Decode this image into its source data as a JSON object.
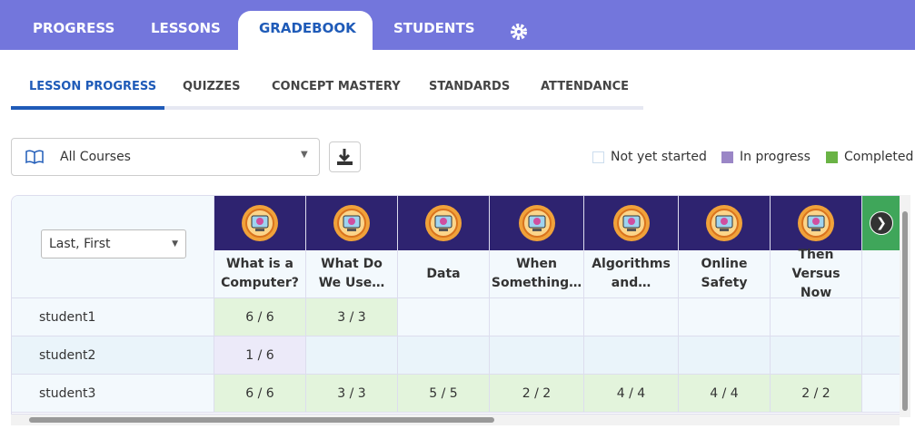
{
  "nav": {
    "tabs": [
      "PROGRESS",
      "LESSONS",
      "GRADEBOOK",
      "STUDENTS"
    ]
  },
  "subnav": {
    "tabs": [
      "LESSON PROGRESS",
      "QUIZZES",
      "CONCEPT MASTERY",
      "STANDARDS",
      "ATTENDANCE"
    ]
  },
  "filter": {
    "course": "All Courses",
    "sort": "Last, First"
  },
  "legend": {
    "items": [
      "Not yet started",
      "In progress",
      "Completed"
    ]
  },
  "table": {
    "lessons": [
      "What is a Computer?",
      "What Do We Use…",
      "Data",
      "When Something…",
      "Algorithms and…",
      "Online Safety",
      "Then Versus Now"
    ],
    "rows": [
      {
        "name": "student1",
        "cells": [
          "6 / 6",
          "3 / 3",
          null,
          null,
          null,
          null,
          null
        ]
      },
      {
        "name": "student2",
        "cells": [
          "1 / 6",
          null,
          null,
          null,
          null,
          null,
          null
        ]
      },
      {
        "name": "student3",
        "cells": [
          "6 / 6",
          "3 / 3",
          "5 / 5",
          "2 / 2",
          "4 / 4",
          "4 / 4",
          "2 / 2"
        ]
      }
    ]
  }
}
